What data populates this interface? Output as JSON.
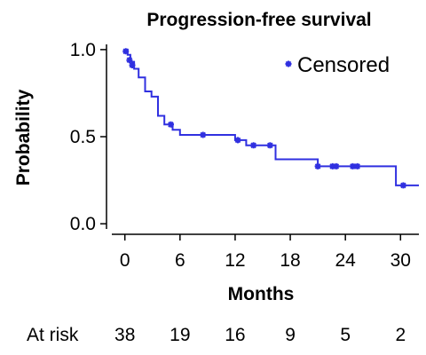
{
  "chart_data": {
    "type": "line",
    "title": "Progression-free survival",
    "xlabel": "Months",
    "ylabel": "Probability",
    "xlim": [
      -2,
      32
    ],
    "ylim": [
      -0.03,
      1.03
    ],
    "xticks": [
      0,
      6,
      12,
      18,
      24,
      30
    ],
    "yticks": [
      0.0,
      0.5,
      1.0
    ],
    "ytick_labels": [
      "0.0",
      "0.5",
      "1.0"
    ],
    "grid": false,
    "legend": {
      "position": "top-right",
      "entries": [
        "Censored"
      ]
    },
    "colors": {
      "series": "#3030e0"
    },
    "series": [
      {
        "kind": "step",
        "x": [
          0,
          0.3,
          0.6,
          1.0,
          1.5,
          2.2,
          2.9,
          3.6,
          4.3,
          5.2,
          6.0,
          12.0,
          13.2,
          16.4,
          21.0,
          29.5,
          32.0
        ],
        "y": [
          1.0,
          0.97,
          0.93,
          0.89,
          0.84,
          0.76,
          0.73,
          0.62,
          0.57,
          0.54,
          0.51,
          0.48,
          0.45,
          0.37,
          0.33,
          0.22,
          0.22
        ]
      },
      {
        "name": "Censored",
        "kind": "scatter",
        "x": [
          0.1,
          0.5,
          0.8,
          5.0,
          8.5,
          12.3,
          14.0,
          15.8,
          21.0,
          22.6,
          23.0,
          24.8,
          25.3,
          30.3
        ],
        "y": [
          0.99,
          0.94,
          0.91,
          0.57,
          0.51,
          0.48,
          0.45,
          0.45,
          0.33,
          0.33,
          0.33,
          0.33,
          0.33,
          0.22
        ]
      }
    ],
    "at_risk": {
      "label": "At risk",
      "months": [
        0,
        6,
        12,
        18,
        24,
        30
      ],
      "counts": [
        "38",
        "19",
        "16",
        "9",
        "5",
        "2"
      ]
    }
  }
}
